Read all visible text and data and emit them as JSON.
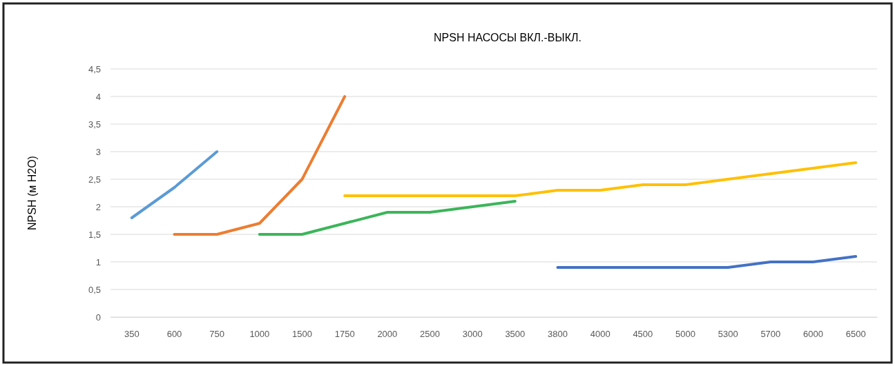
{
  "chart_data": {
    "type": "line",
    "title": "NPSH НАСОСЫ ВКЛ.-ВЫКЛ.",
    "ylabel": "NPSH (м H2O)",
    "categories": [
      "350",
      "600",
      "750",
      "1000",
      "1500",
      "1750",
      "2000",
      "2500",
      "3000",
      "3500",
      "3800",
      "4000",
      "4500",
      "5000",
      "5300",
      "5700",
      "6000",
      "6500"
    ],
    "ylim": [
      0,
      4.5
    ],
    "yticks": [
      0,
      {
        "value": 0.5,
        "label": "0,5"
      },
      1,
      {
        "value": 1.5,
        "label": "1,5"
      },
      2,
      {
        "value": 2.5,
        "label": "2,5"
      },
      3,
      {
        "value": 3.5,
        "label": "3,5"
      },
      4,
      {
        "value": 4.5,
        "label": "4,5"
      }
    ],
    "grid": "y",
    "series": [
      {
        "color": "#5b9bd5",
        "values": [
          1.8,
          2.35,
          3.0,
          null,
          null,
          null,
          null,
          null,
          null,
          null,
          null,
          null,
          null,
          null,
          null,
          null,
          null,
          null
        ]
      },
      {
        "color": "#ed7d31",
        "values": [
          null,
          1.5,
          1.5,
          1.7,
          2.5,
          4.0,
          null,
          null,
          null,
          null,
          null,
          null,
          null,
          null,
          null,
          null,
          null,
          null
        ]
      },
      {
        "color": "#3cb55a",
        "values": [
          null,
          null,
          null,
          1.5,
          1.5,
          1.7,
          1.9,
          1.9,
          2.0,
          2.1,
          null,
          null,
          null,
          null,
          null,
          null,
          null,
          null
        ]
      },
      {
        "color": "#ffc000",
        "values": [
          null,
          null,
          null,
          null,
          null,
          2.2,
          2.2,
          2.2,
          2.2,
          2.2,
          2.3,
          2.3,
          2.4,
          2.4,
          2.5,
          2.6,
          2.7,
          2.8
        ]
      },
      {
        "color": "#4472c4",
        "values": [
          null,
          null,
          null,
          null,
          null,
          null,
          null,
          null,
          null,
          null,
          0.9,
          0.9,
          0.9,
          0.9,
          0.9,
          1.0,
          1.0,
          1.1
        ]
      }
    ]
  }
}
